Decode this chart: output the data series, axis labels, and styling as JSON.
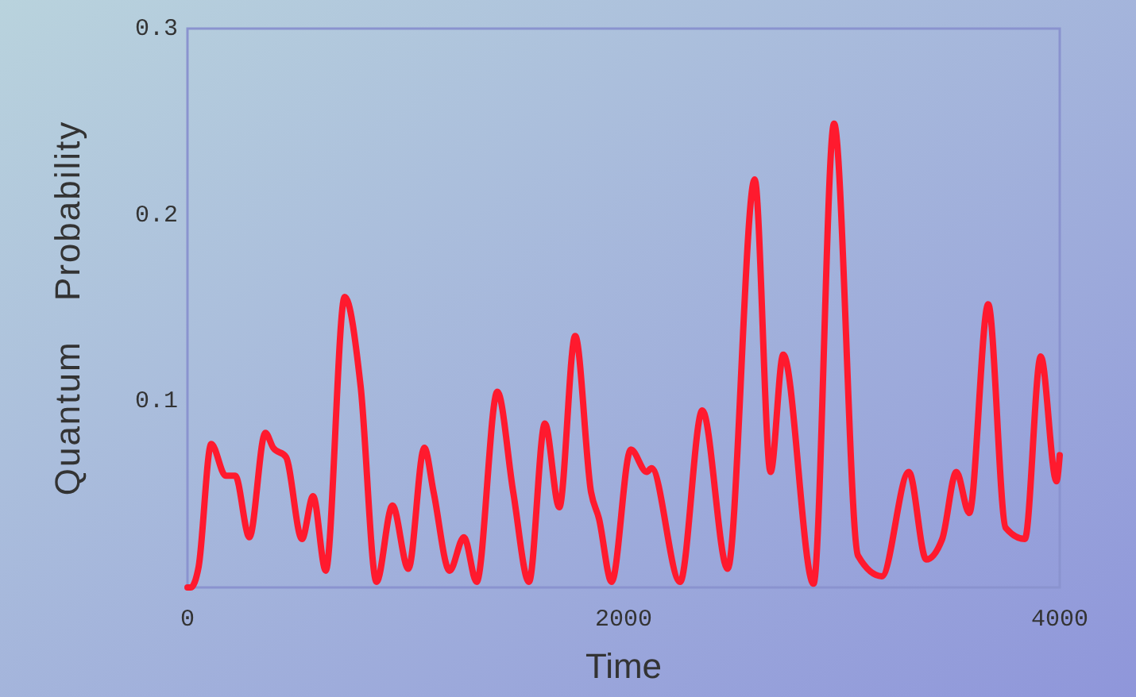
{
  "chart_data": {
    "type": "line",
    "xlabel": "Time",
    "ylabel": "Quantum Probability",
    "xlim": [
      0,
      4000
    ],
    "ylim": [
      0,
      0.3
    ],
    "xticks": [
      0,
      2000,
      4000
    ],
    "yticks": [
      0.1,
      0.2,
      0.3
    ],
    "grid": false,
    "marker": "none",
    "line_style": "solid",
    "series": [
      {
        "color": "#ff1a2e",
        "x": [
          0,
          15,
          51,
          109,
          175,
          219,
          284,
          357,
          393,
          452,
          525,
          576,
          634,
          721,
          794,
          867,
          940,
          1013,
          1086,
          1129,
          1202,
          1268,
          1326,
          1421,
          1494,
          1566,
          1639,
          1705,
          1778,
          1851,
          1887,
          1945,
          2033,
          2106,
          2128,
          2259,
          2361,
          2477,
          2601,
          2674,
          2732,
          2871,
          2965,
          3075,
          3184,
          3308,
          3388,
          3461,
          3526,
          3585,
          3672,
          3752,
          3840,
          3913,
          3985,
          4000
        ],
        "values": [
          0,
          0,
          0.011,
          0.077,
          0.06,
          0.06,
          0.027,
          0.083,
          0.075,
          0.07,
          0.026,
          0.049,
          0.009,
          0.156,
          0.108,
          0.003,
          0.044,
          0.01,
          0.075,
          0.051,
          0.009,
          0.027,
          0.003,
          0.105,
          0.051,
          0.003,
          0.088,
          0.043,
          0.135,
          0.051,
          0.037,
          0.003,
          0.074,
          0.062,
          0.064,
          0.003,
          0.095,
          0.01,
          0.219,
          0.062,
          0.125,
          0.002,
          0.249,
          0.017,
          0.006,
          0.062,
          0.015,
          0.026,
          0.062,
          0.04,
          0.152,
          0.032,
          0.026,
          0.124,
          0.057,
          0.071
        ]
      }
    ]
  }
}
